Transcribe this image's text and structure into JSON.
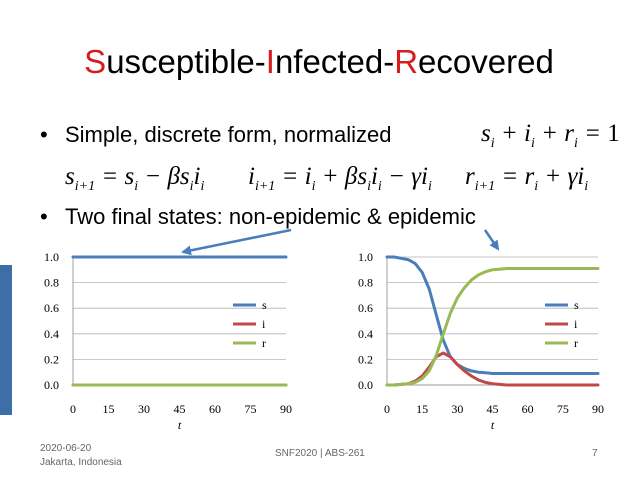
{
  "title": {
    "s_letter": "S",
    "s_rest": "usceptible-",
    "i_letter": "I",
    "i_rest": "nfected-",
    "r_letter": "R",
    "r_rest": "ecovered"
  },
  "bullets": [
    {
      "dot": "•",
      "text": "Simple,  discrete form,    normalized",
      "formula": "s_i + i_i + r_i = 1"
    },
    {
      "dot": "•",
      "text": "Two final states: non-epidemic & epidemic"
    }
  ],
  "equations": [
    "s_{i+1} = s_i − βs_i i_i",
    "i_{i+1} = i_i + βs_i i_i − γi_i",
    "r_{i+1} = r_i + γi_i"
  ],
  "colors": {
    "accent": "#d81b1b",
    "s": "#4a7ebb",
    "i": "#be4b48",
    "r": "#98b954",
    "arrow": "#4a7ebb",
    "side_bar": "#3d6fa6"
  },
  "footer": {
    "date": "2020-06-20",
    "place": "Jakarta, Indonesia",
    "center": "SNF2020 | ABS-261",
    "page": "7"
  },
  "chart_data": [
    {
      "type": "line",
      "xlabel": "t",
      "xlim": [
        0,
        90
      ],
      "ylim": [
        0,
        1
      ],
      "xticks": [
        "0",
        "15",
        "30",
        "45",
        "60",
        "75",
        "90"
      ],
      "yticks": [
        "0.0",
        "0.2",
        "0.4",
        "0.6",
        "0.8",
        "1.0"
      ],
      "legend_position": "right",
      "x": [
        0,
        5,
        10,
        15,
        20,
        25,
        30,
        35,
        40,
        45,
        50,
        55,
        60,
        65,
        70,
        75,
        80,
        85,
        90
      ],
      "series": [
        {
          "name": "s",
          "color": "#4a7ebb",
          "values": [
            1,
            1,
            1,
            1,
            1,
            1,
            1,
            1,
            1,
            1,
            1,
            1,
            1,
            1,
            1,
            1,
            1,
            1,
            1
          ]
        },
        {
          "name": "i",
          "color": "#be4b48",
          "values": [
            0,
            0,
            0,
            0,
            0,
            0,
            0,
            0,
            0,
            0,
            0,
            0,
            0,
            0,
            0,
            0,
            0,
            0,
            0
          ]
        },
        {
          "name": "r",
          "color": "#98b954",
          "values": [
            0,
            0,
            0,
            0,
            0,
            0,
            0,
            0,
            0,
            0,
            0,
            0,
            0,
            0,
            0,
            0,
            0,
            0,
            0
          ]
        }
      ]
    },
    {
      "type": "line",
      "xlabel": "t",
      "xlim": [
        0,
        90
      ],
      "ylim": [
        0,
        1
      ],
      "xticks": [
        "0",
        "15",
        "30",
        "45",
        "60",
        "75",
        "90"
      ],
      "yticks": [
        "0.0",
        "0.2",
        "0.4",
        "0.6",
        "0.8",
        "1.0"
      ],
      "legend_position": "right",
      "x": [
        0,
        3,
        6,
        9,
        12,
        15,
        18,
        21,
        24,
        27,
        30,
        33,
        36,
        39,
        42,
        45,
        48,
        51,
        54,
        57,
        60,
        65,
        70,
        75,
        80,
        85,
        90
      ],
      "series": [
        {
          "name": "s",
          "color": "#4a7ebb",
          "values": [
            1.0,
            1.0,
            0.99,
            0.98,
            0.95,
            0.88,
            0.75,
            0.55,
            0.35,
            0.22,
            0.16,
            0.13,
            0.11,
            0.1,
            0.095,
            0.09,
            0.09,
            0.09,
            0.09,
            0.09,
            0.09,
            0.09,
            0.09,
            0.09,
            0.09,
            0.09,
            0.09
          ]
        },
        {
          "name": "i",
          "color": "#be4b48",
          "values": [
            0.0,
            0.0,
            0.005,
            0.01,
            0.03,
            0.07,
            0.14,
            0.22,
            0.25,
            0.22,
            0.16,
            0.11,
            0.07,
            0.04,
            0.02,
            0.01,
            0.005,
            0.0,
            0.0,
            0.0,
            0.0,
            0.0,
            0.0,
            0.0,
            0.0,
            0.0,
            0.0
          ]
        },
        {
          "name": "r",
          "color": "#98b954",
          "values": [
            0.0,
            0.0,
            0.005,
            0.01,
            0.02,
            0.05,
            0.11,
            0.23,
            0.4,
            0.56,
            0.68,
            0.76,
            0.82,
            0.86,
            0.885,
            0.9,
            0.905,
            0.91,
            0.91,
            0.91,
            0.91,
            0.91,
            0.91,
            0.91,
            0.91,
            0.91,
            0.91
          ]
        }
      ]
    }
  ]
}
